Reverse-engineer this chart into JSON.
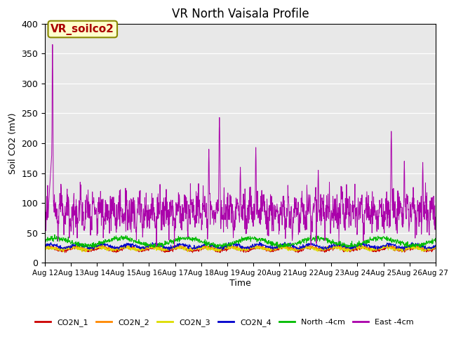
{
  "title": "VR North Vaisala Profile",
  "ylabel": "Soil CO2 (mV)",
  "xlabel": "Time",
  "annotation": "VR_soilco2",
  "ylim": [
    0,
    400
  ],
  "yticks": [
    0,
    50,
    100,
    150,
    200,
    250,
    300,
    350,
    400
  ],
  "x_tick_labels": [
    "Aug 12",
    "Aug 13",
    "Aug 14",
    "Aug 15",
    "Aug 16",
    "Aug 17",
    "Aug 18",
    "Aug 19",
    "Aug 20",
    "Aug 21",
    "Aug 22",
    "Aug 23",
    "Aug 24",
    "Aug 25",
    "Aug 26",
    "Aug 27"
  ],
  "colors": {
    "CO2N_1": "#cc0000",
    "CO2N_2": "#ff8800",
    "CO2N_3": "#dddd00",
    "CO2N_4": "#0000cc",
    "North_4cm": "#00bb00",
    "East_4cm": "#aa00aa"
  },
  "legend_labels": [
    "CO2N_1",
    "CO2N_2",
    "CO2N_3",
    "CO2N_4",
    "North -4cm",
    "East -4cm"
  ],
  "background_color": "#e8e8e8",
  "title_fontsize": 12,
  "annotation_fontsize": 11,
  "annotation_box_color": "#ffffcc",
  "annotation_border_color": "#888800"
}
